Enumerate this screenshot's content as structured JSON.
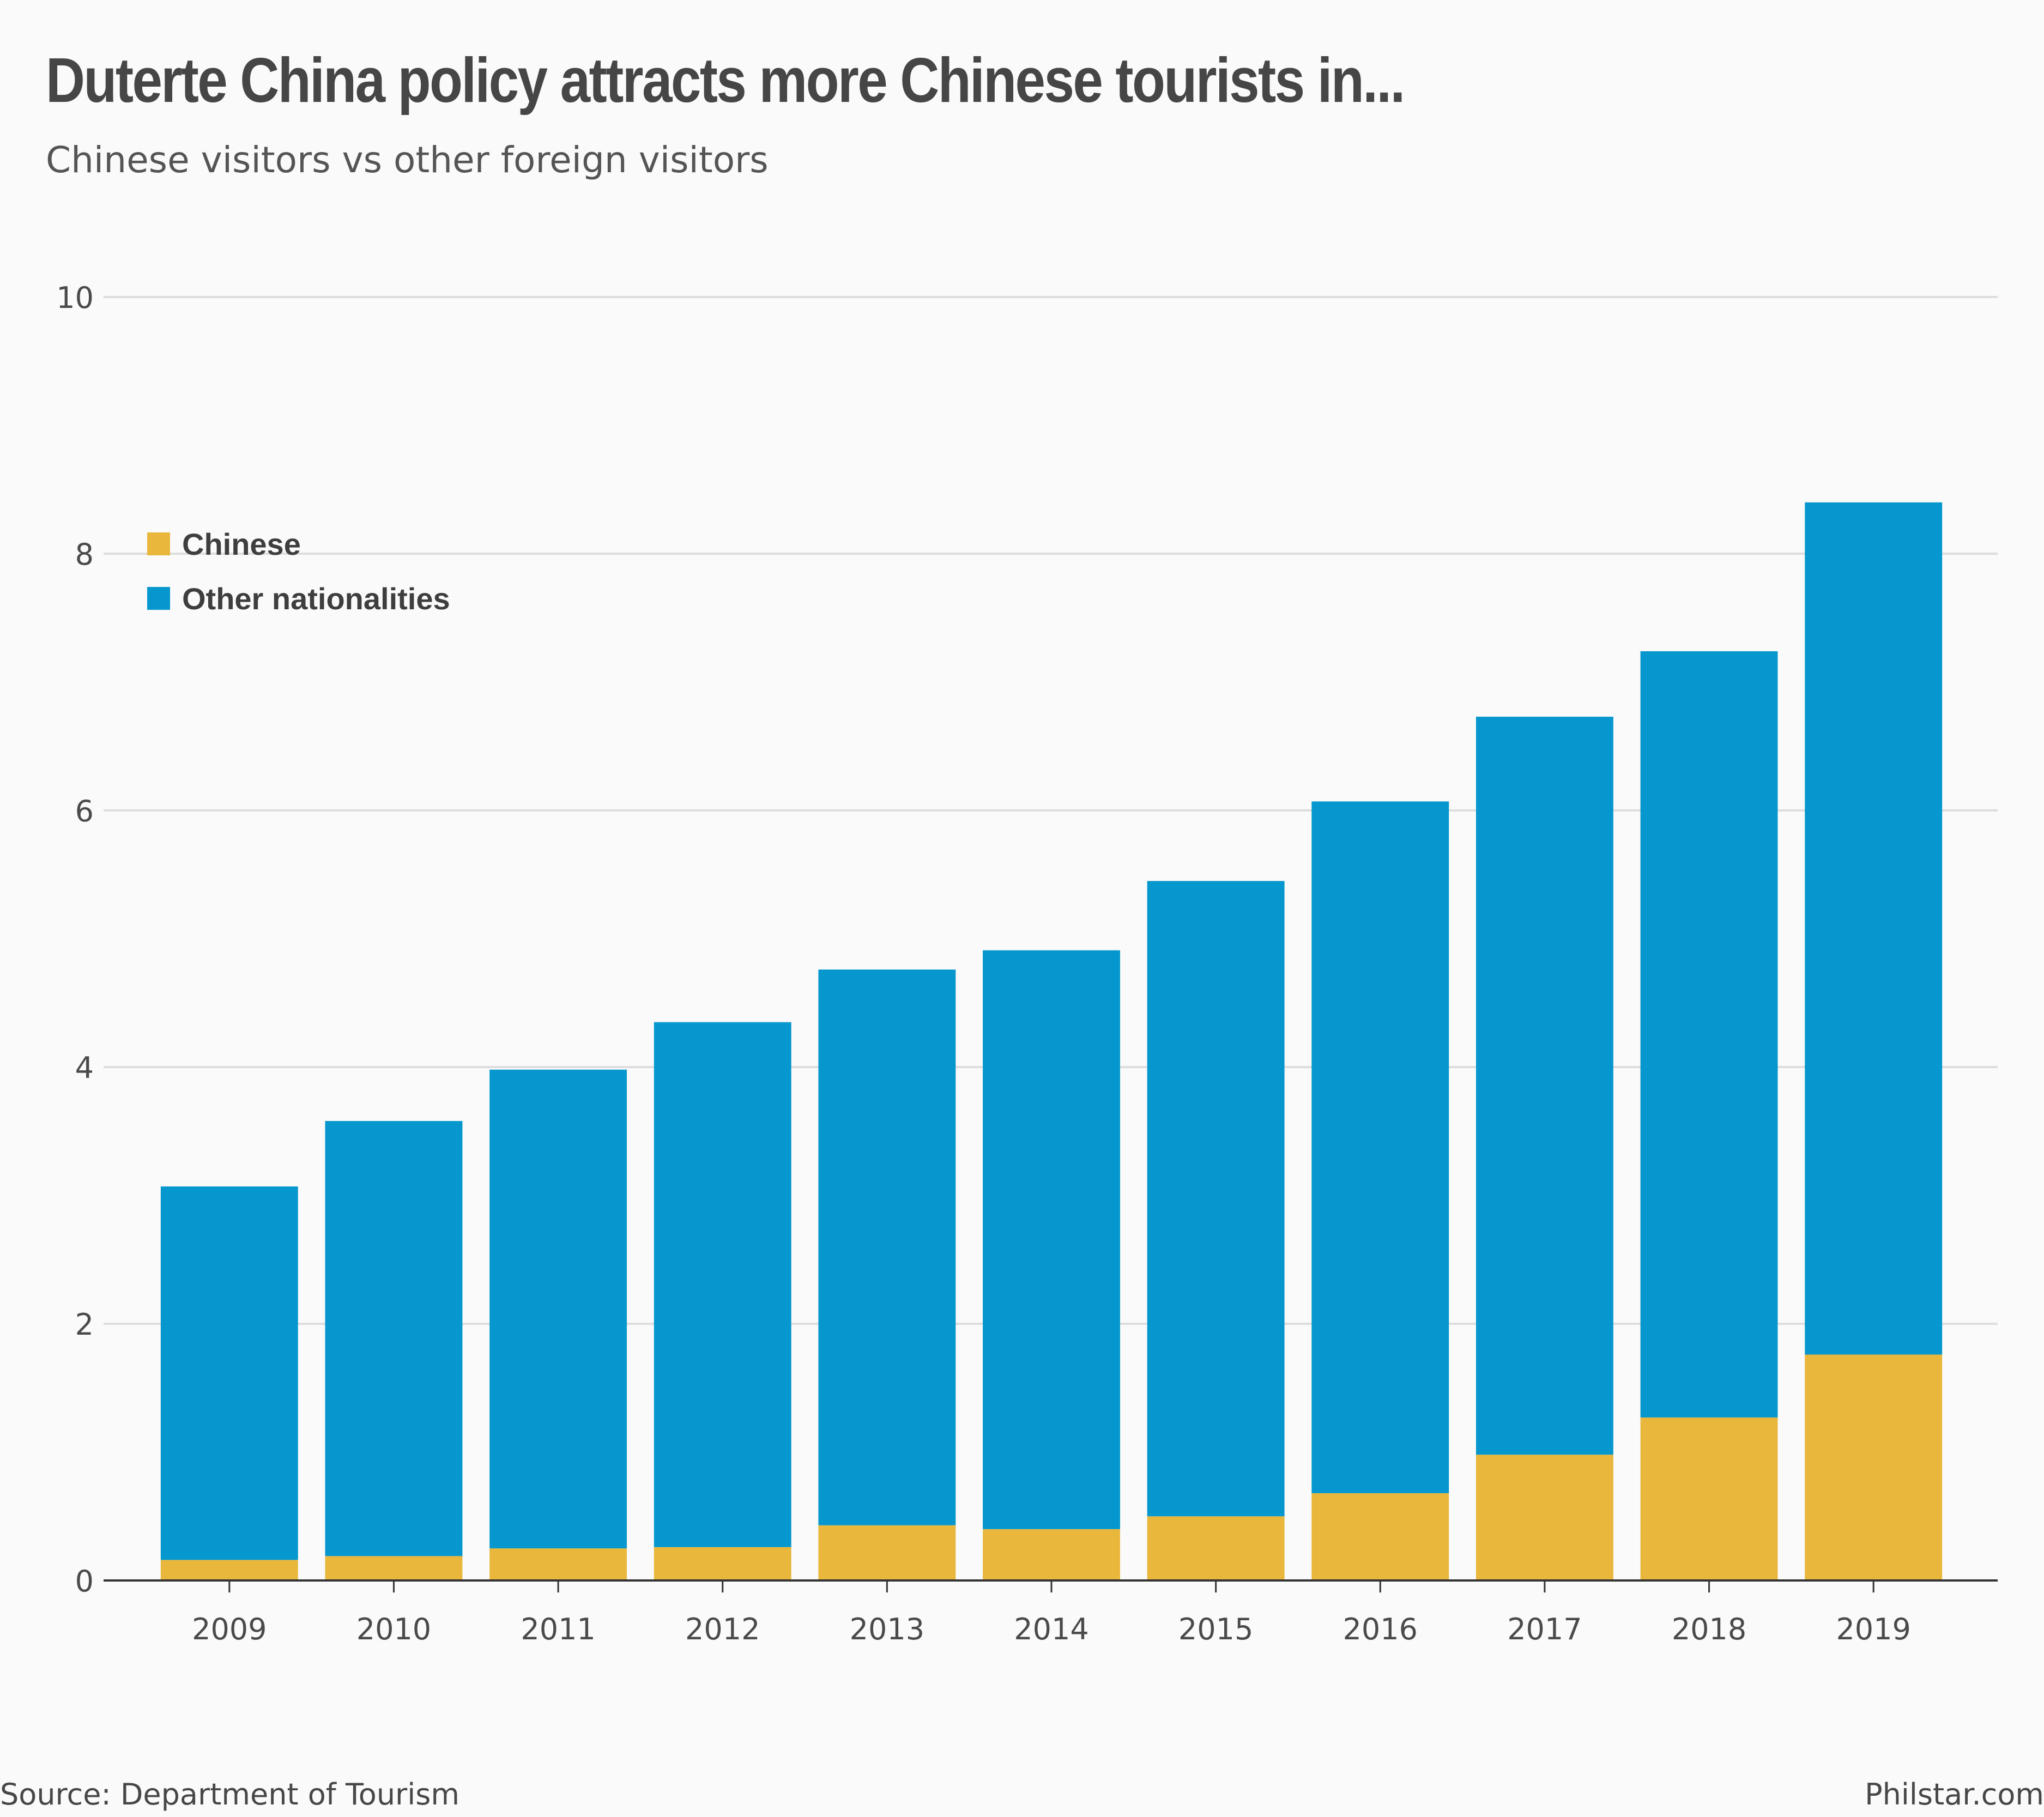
{
  "header": {
    "title": "Duterte China policy attracts more Chinese tourists in...",
    "subtitle": "Chinese visitors vs other foreign visitors"
  },
  "footer": {
    "source": "Source: Department of Tourism",
    "credit": "Philstar.com"
  },
  "colors": {
    "chinese": "#e8b73c",
    "other": "#0597cd",
    "grid": "#dddddd",
    "axis": "#333333"
  },
  "chart_data": {
    "type": "bar",
    "stacked": true,
    "categories": [
      "2009",
      "2010",
      "2011",
      "2012",
      "2013",
      "2014",
      "2015",
      "2016",
      "2017",
      "2018",
      "2019"
    ],
    "series": [
      {
        "name": "Chinese",
        "color": "#e8b73c",
        "values": [
          0.16,
          0.19,
          0.25,
          0.26,
          0.43,
          0.4,
          0.5,
          0.68,
          0.98,
          1.27,
          1.76
        ]
      },
      {
        "name": "Other nationalities",
        "color": "#0597cd",
        "values": [
          2.91,
          3.39,
          3.73,
          4.09,
          4.33,
          4.51,
          4.95,
          5.39,
          5.75,
          5.97,
          6.64
        ]
      }
    ],
    "title": "Duterte China policy attracts more Chinese tourists in...",
    "subtitle": "Chinese visitors vs other foreign visitors",
    "xlabel": "",
    "ylabel": "",
    "ylim": [
      0,
      10
    ],
    "yticks": [
      0,
      2,
      4,
      6,
      8,
      10
    ],
    "grid": true,
    "legend": "top-left"
  }
}
